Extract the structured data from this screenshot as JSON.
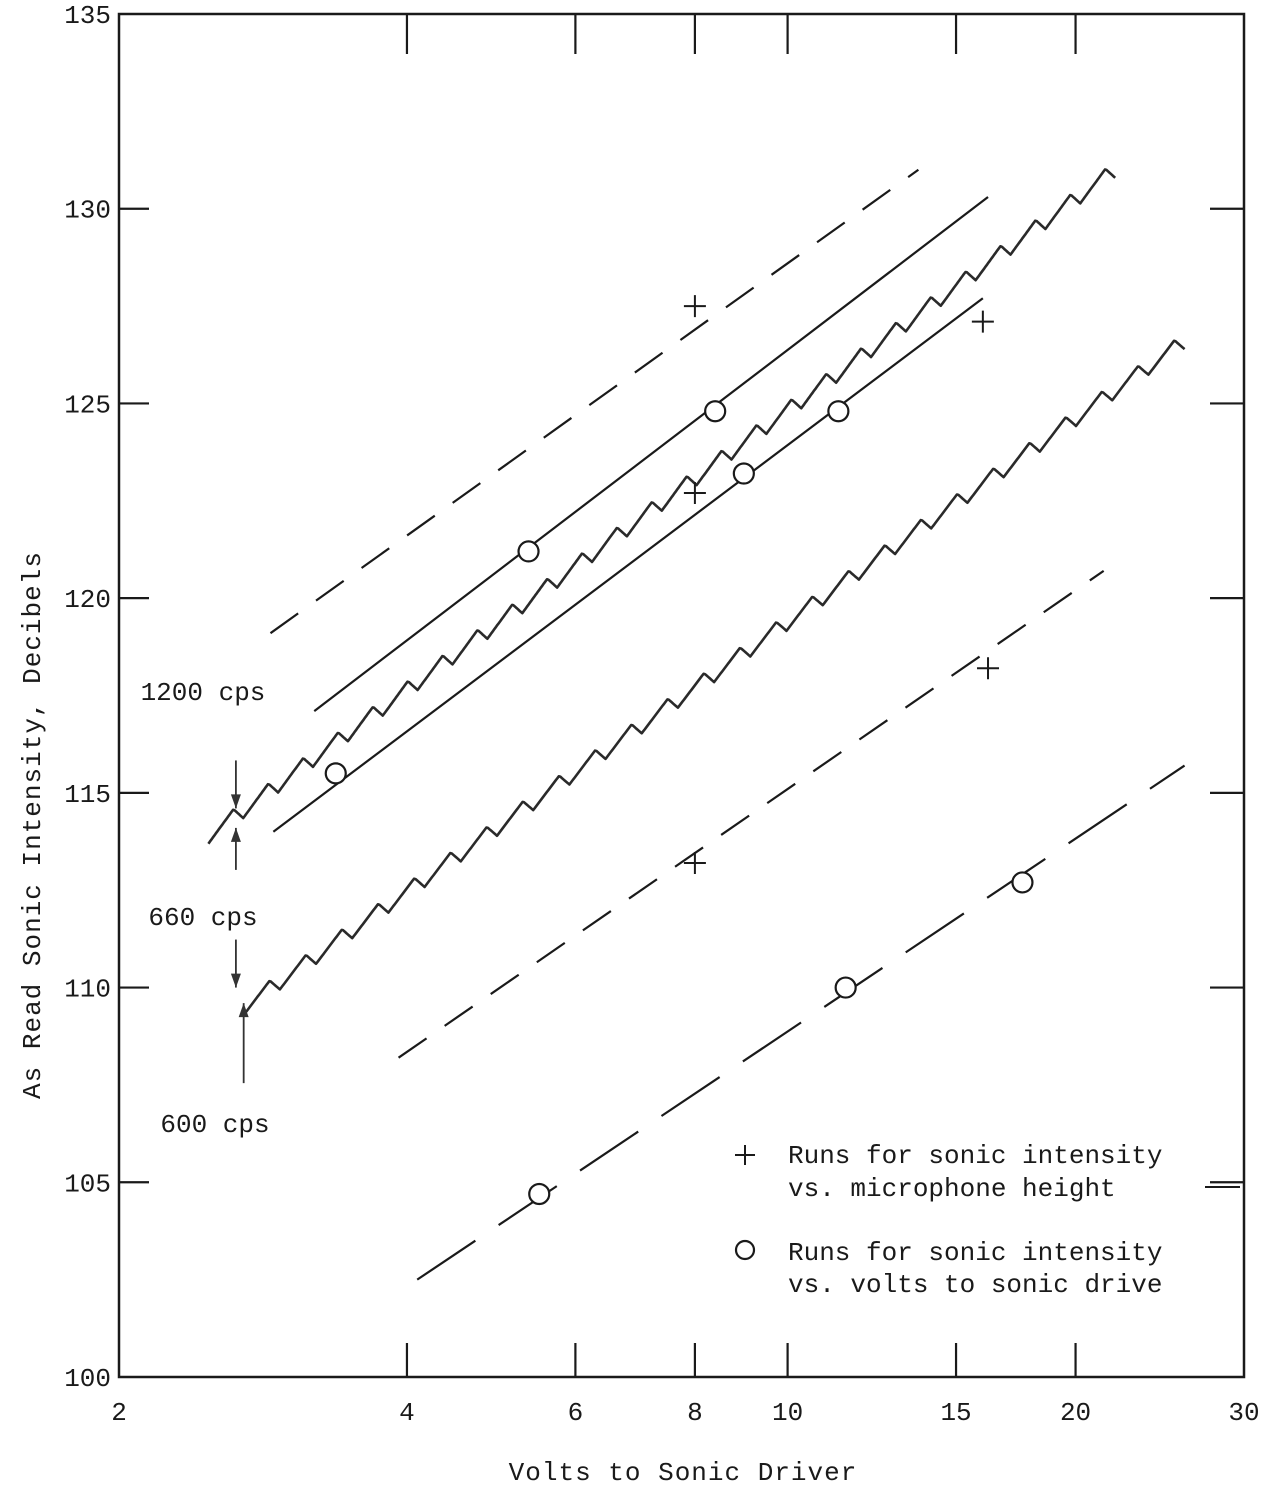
{
  "chart_data": {
    "type": "line",
    "title": "",
    "xlabel": "Volts to Sonic Driver",
    "ylabel": "As Read Sonic Intensity, Decibels",
    "x_scale": "log",
    "xlim": [
      2,
      30
    ],
    "ylim": [
      100,
      135
    ],
    "x_ticks": [
      2,
      4,
      6,
      8,
      10,
      15,
      20,
      30
    ],
    "x_tick_labels": [
      "2",
      "4",
      "6",
      "8",
      "10",
      "15",
      "20",
      "30"
    ],
    "y_ticks": [
      100,
      105,
      110,
      115,
      120,
      125,
      130,
      135
    ],
    "y_tick_labels": [
      "100",
      "105",
      "110",
      "115",
      "120",
      "125",
      "130",
      "135"
    ],
    "grid": false,
    "legend_position": "bottom-right",
    "legend": [
      {
        "marker": "plus",
        "symbol": "+",
        "line1": "Runs for sonic intensity",
        "line2": "vs. microphone height"
      },
      {
        "marker": "circle",
        "symbol": "O",
        "line1": "Runs for sonic intensity",
        "line2": "vs. volts to sonic drive"
      }
    ],
    "annotations": [
      {
        "text": "1200 cps",
        "arrow_to": [
          2.65,
          114.6
        ],
        "arrow_dir": "down"
      },
      {
        "text": "660 cps",
        "arrow_to": [
          2.65,
          114.1
        ],
        "arrow_dir": "up"
      },
      {
        "text": "660 cps",
        "arrow_to": [
          2.65,
          110.0
        ],
        "arrow_dir": "down"
      },
      {
        "text": "600 cps",
        "arrow_to": [
          2.7,
          109.6
        ],
        "arrow_dir": "up"
      }
    ],
    "series": [
      {
        "style": "trace",
        "color": "#2a2a2a",
        "x": [
          2.48,
          22
        ],
        "y": [
          113.9,
          131.0
        ],
        "ripples": 26
      },
      {
        "style": "trace",
        "color": "#2a2a2a",
        "x": [
          2.7,
          26
        ],
        "y": [
          109.5,
          126.6
        ],
        "ripples": 26
      },
      {
        "style": "dashed",
        "x": [
          2.88,
          13.7
        ],
        "y": [
          119.1,
          131.0
        ]
      },
      {
        "style": "solid",
        "x": [
          3.2,
          16.2
        ],
        "y": [
          117.1,
          130.3
        ]
      },
      {
        "style": "solid",
        "x": [
          2.9,
          16.0
        ],
        "y": [
          114.0,
          127.7
        ]
      },
      {
        "style": "dashed",
        "x": [
          3.92,
          21.4
        ],
        "y": [
          108.2,
          120.7
        ]
      },
      {
        "style": "longdash",
        "x": [
          4.1,
          26.0
        ],
        "y": [
          102.5,
          115.7
        ]
      },
      {
        "style": "points",
        "marker": "plus",
        "x": [
          8.0,
          8.0,
          16.0,
          16.2,
          8.0
        ],
        "y": [
          127.5,
          122.7,
          127.1,
          118.2,
          113.2
        ]
      },
      {
        "style": "points",
        "marker": "circle",
        "x": [
          3.37,
          5.36,
          8.4,
          9.0,
          11.3,
          5.5,
          11.5,
          17.6
        ],
        "y": [
          115.5,
          121.2,
          124.8,
          123.2,
          124.8,
          104.7,
          110.0,
          112.7
        ]
      }
    ]
  }
}
